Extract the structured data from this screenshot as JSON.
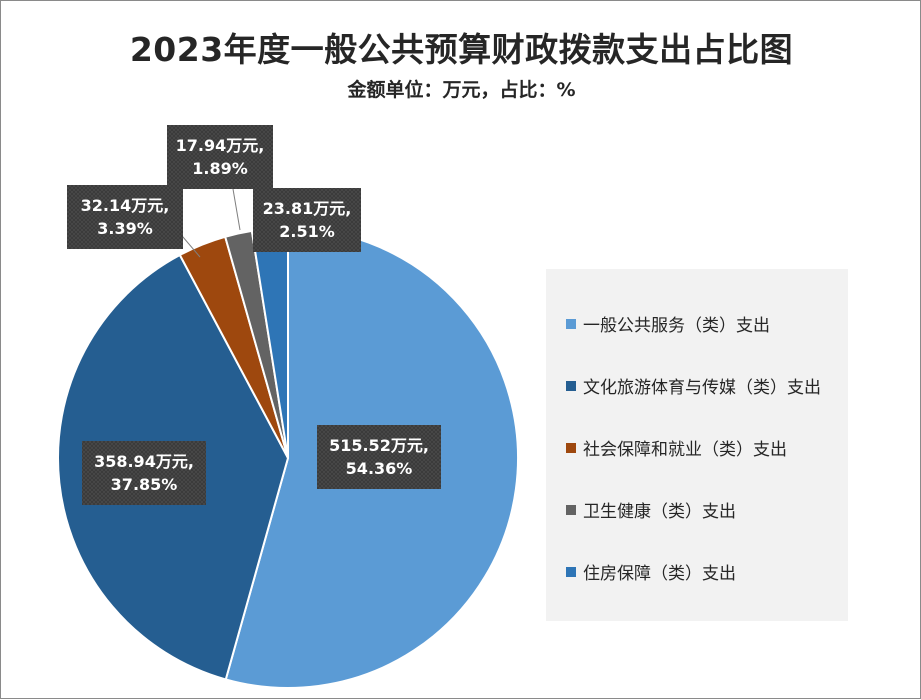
{
  "chart_data": {
    "type": "pie",
    "title": "2023年度一般公共预算财政拨款支出占比图",
    "subtitle": "金额单位：万元，占比：%",
    "categories": [
      "一般公共服务（类）支出",
      "文化旅游体育与传媒（类）支出",
      "社会保障和就业（类）支出",
      "卫生健康（类）支出",
      "住房保障（类）支出"
    ],
    "values": [
      515.52,
      358.94,
      32.14,
      17.94,
      23.81
    ],
    "percents": [
      54.36,
      37.85,
      3.39,
      1.89,
      2.51
    ],
    "data_labels": [
      [
        "515.52万元,",
        "54.36%"
      ],
      [
        "358.94万元,",
        "37.85%"
      ],
      [
        "32.14万元,",
        "3.39%"
      ],
      [
        "17.94万元,",
        "1.89%"
      ],
      [
        "23.81万元,",
        "2.51%"
      ]
    ],
    "colors": [
      "#5b9bd5",
      "#255e91",
      "#9e480e",
      "#636363",
      "#2e75b6"
    ],
    "legend_position": "right"
  }
}
